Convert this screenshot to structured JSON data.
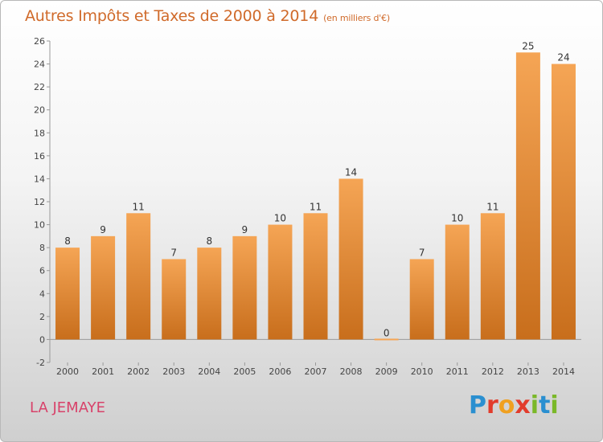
{
  "header": {
    "title": "Autres Impôts et Taxes de 2000 à 2014",
    "unit": "(en milliers d'€)"
  },
  "commune": "LA JEMAYE",
  "logo": {
    "text": "Proxiti",
    "letters": [
      {
        "char": "P",
        "color": "#2a8fd0"
      },
      {
        "char": "r",
        "color": "#e23c2c"
      },
      {
        "char": "o",
        "color": "#f0a020"
      },
      {
        "char": "x",
        "color": "#e23c2c"
      },
      {
        "char": "i",
        "color": "#7ab828"
      },
      {
        "char": "t",
        "color": "#2a8fd0"
      },
      {
        "char": "i",
        "color": "#7ab828"
      }
    ]
  },
  "chart_data": {
    "type": "bar",
    "title": "Autres Impôts et Taxes de 2000 à 2014",
    "subtitle": "(en milliers d'€)",
    "xlabel": "",
    "ylabel": "",
    "categories": [
      "2000",
      "2001",
      "2002",
      "2003",
      "2004",
      "2005",
      "2006",
      "2007",
      "2008",
      "2009",
      "2010",
      "2011",
      "2012",
      "2013",
      "2014"
    ],
    "values": [
      8,
      9,
      11,
      7,
      8,
      9,
      10,
      11,
      14,
      0,
      7,
      10,
      11,
      25,
      24
    ],
    "ylim": [
      -2,
      26
    ],
    "yticks": [
      -2,
      0,
      2,
      4,
      6,
      8,
      10,
      12,
      14,
      16,
      18,
      20,
      22,
      24,
      26
    ],
    "grid": false,
    "legend": "none",
    "bar_color_top": "#f5a555",
    "bar_color_bottom": "#c86e1c",
    "data_labels": true
  }
}
